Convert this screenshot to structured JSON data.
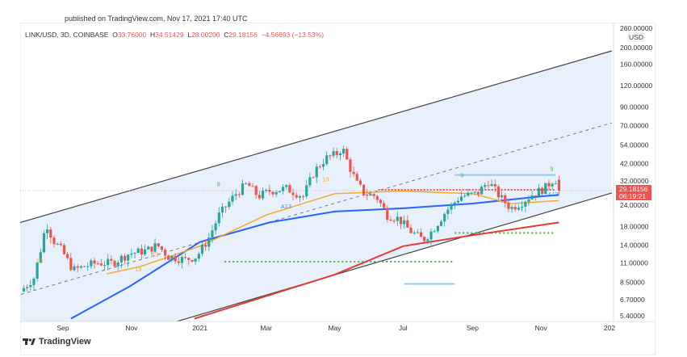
{
  "header": {
    "published": "published on TradingView.com, Nov 17, 2021 17:40 UTC",
    "symbol": "LINK/USD, 3D, COINBASE",
    "o_label": "O",
    "o_value": "33.76000",
    "h_label": "H",
    "h_value": "34.51429",
    "l_label": "L",
    "l_value": "28.00200",
    "c_label": "C",
    "c_value": "29.18156",
    "change": "−4.56693 (−13.53%)"
  },
  "price_axis": {
    "currency": "USD",
    "current_price": "29.18156",
    "countdown": "06:19:21"
  },
  "branding": {
    "logo_text": "TradingView"
  },
  "colors": {
    "up": "#26a69a",
    "down": "#ef5350",
    "ma_blue": "#2962ff",
    "ma_orange": "#f5a623",
    "ma_red": "#e53935",
    "channel_fill": "#e8f1fb",
    "green_level": "#4caf50",
    "blue_level": "#90caf9"
  },
  "chart_data": {
    "type": "candlestick",
    "title": "LINK/USD, 3D, COINBASE",
    "yscale": "log",
    "ylim": [
      5.2,
      270
    ],
    "y_ticks": [
      {
        "value": 260,
        "label": "260.00000"
      },
      {
        "value": 200,
        "label": "200.00000"
      },
      {
        "value": 160,
        "label": "160.00000"
      },
      {
        "value": 120,
        "label": "120.00000"
      },
      {
        "value": 90,
        "label": "90.00000"
      },
      {
        "value": 70,
        "label": "70.00000"
      },
      {
        "value": 54,
        "label": "54.00000"
      },
      {
        "value": 42,
        "label": "42.00000"
      },
      {
        "value": 32,
        "label": "32.00000"
      },
      {
        "value": 24,
        "label": "24.00000"
      },
      {
        "value": 18,
        "label": "18.00000"
      },
      {
        "value": 14,
        "label": "14.00000"
      },
      {
        "value": 11,
        "label": "11.00000"
      },
      {
        "value": 8.5,
        "label": "8.50000"
      },
      {
        "value": 6.7,
        "label": "6.70000"
      },
      {
        "value": 5.4,
        "label": "5.40000"
      }
    ],
    "x_unit": "days since 2020-08-01",
    "x_ticks": [
      {
        "day": 31,
        "label": "Sep"
      },
      {
        "day": 92,
        "label": "Nov"
      },
      {
        "day": 153,
        "label": "2021"
      },
      {
        "day": 212,
        "label": "Mar"
      },
      {
        "day": 273,
        "label": "May"
      },
      {
        "day": 334,
        "label": "Jul"
      },
      {
        "day": 396,
        "label": "Sep"
      },
      {
        "day": 457,
        "label": "Nov"
      },
      {
        "day": 518,
        "label": "202"
      }
    ],
    "price_path": [
      [
        -7,
        7.5
      ],
      [
        5,
        9
      ],
      [
        12,
        14
      ],
      [
        16,
        19
      ],
      [
        22,
        15
      ],
      [
        30,
        13
      ],
      [
        40,
        10
      ],
      [
        50,
        10.5
      ],
      [
        60,
        11
      ],
      [
        75,
        11
      ],
      [
        90,
        12.5
      ],
      [
        105,
        13
      ],
      [
        115,
        14
      ],
      [
        125,
        12
      ],
      [
        140,
        11.5
      ],
      [
        150,
        12
      ],
      [
        160,
        15
      ],
      [
        170,
        21
      ],
      [
        185,
        28
      ],
      [
        195,
        32
      ],
      [
        205,
        27
      ],
      [
        215,
        29
      ],
      [
        230,
        30
      ],
      [
        245,
        27
      ],
      [
        255,
        38
      ],
      [
        265,
        45
      ],
      [
        275,
        48
      ],
      [
        280,
        52
      ],
      [
        285,
        42
      ],
      [
        293,
        32
      ],
      [
        300,
        28
      ],
      [
        310,
        27
      ],
      [
        320,
        21
      ],
      [
        330,
        20
      ],
      [
        340,
        17
      ],
      [
        352,
        15
      ],
      [
        360,
        17
      ],
      [
        372,
        22
      ],
      [
        385,
        27
      ],
      [
        400,
        28
      ],
      [
        410,
        33
      ],
      [
        420,
        27
      ],
      [
        430,
        23
      ],
      [
        440,
        25
      ],
      [
        450,
        28
      ],
      [
        460,
        30
      ],
      [
        468,
        34
      ],
      [
        470,
        33.76
      ],
      [
        473,
        29.18
      ]
    ],
    "series": [
      {
        "name": "MA blue",
        "color": "#2962ff",
        "points": [
          [
            38,
            5.2
          ],
          [
            90,
            8
          ],
          [
            153,
            14.6
          ],
          [
            215,
            19
          ],
          [
            273,
            22
          ],
          [
            334,
            23
          ],
          [
            396,
            24.5
          ],
          [
            457,
            27
          ],
          [
            473,
            27.5
          ]
        ]
      },
      {
        "name": "MA orange",
        "color": "#f5a623",
        "points": [
          [
            70,
            9.5
          ],
          [
            100,
            10.5
          ],
          [
            153,
            13.8
          ],
          [
            212,
            21
          ],
          [
            273,
            28
          ],
          [
            334,
            29
          ],
          [
            396,
            28
          ],
          [
            430,
            24.5
          ],
          [
            473,
            25.5
          ]
        ]
      },
      {
        "name": "MA red",
        "color": "#e53935",
        "points": [
          [
            148,
            5.2
          ],
          [
            273,
            9.4
          ],
          [
            334,
            13.8
          ],
          [
            396,
            16
          ],
          [
            473,
            19
          ]
        ]
      }
    ],
    "channel": {
      "upper": [
        [
          -7,
          19
        ],
        [
          518,
          190
        ]
      ],
      "middle": [
        [
          -7,
          7.2
        ],
        [
          518,
          72
        ]
      ],
      "lower": [
        [
          141,
          5.2
        ],
        [
          518,
          28
        ]
      ]
    },
    "levels": [
      {
        "price": 11.2,
        "from": 175,
        "to": 380,
        "style": "green-dotted"
      },
      {
        "price": 16.5,
        "from": 380,
        "to": 468,
        "style": "green-dotted"
      },
      {
        "price": 8.3,
        "from": 335,
        "to": 380,
        "style": "blue"
      },
      {
        "price": 36,
        "from": 380,
        "to": 470,
        "style": "blue"
      },
      {
        "price": 29.5,
        "from": 312,
        "to": 470,
        "style": "red-dotted"
      }
    ],
    "annotations": [
      {
        "day": 7,
        "price": 11,
        "text": "13",
        "color": "#f5a623"
      },
      {
        "day": 95,
        "price": 9.8,
        "text": "13",
        "color": "#f5a623"
      },
      {
        "day": 110,
        "price": 12,
        "text": "13",
        "color": "#f5a623"
      },
      {
        "day": 225,
        "price": 23,
        "text": "A13",
        "color": "#2196f3"
      },
      {
        "day": 262,
        "price": 33,
        "text": "13",
        "color": "#f5a623"
      },
      {
        "day": 168,
        "price": 31,
        "text": "9",
        "color": "#4caf50"
      },
      {
        "day": 385,
        "price": 35,
        "text": "9",
        "color": "#4caf50"
      },
      {
        "day": 465,
        "price": 38,
        "text": "9",
        "color": "#4caf50"
      },
      {
        "day": 463,
        "price": 27,
        "text": "A13",
        "color": "#2196f3"
      }
    ]
  }
}
